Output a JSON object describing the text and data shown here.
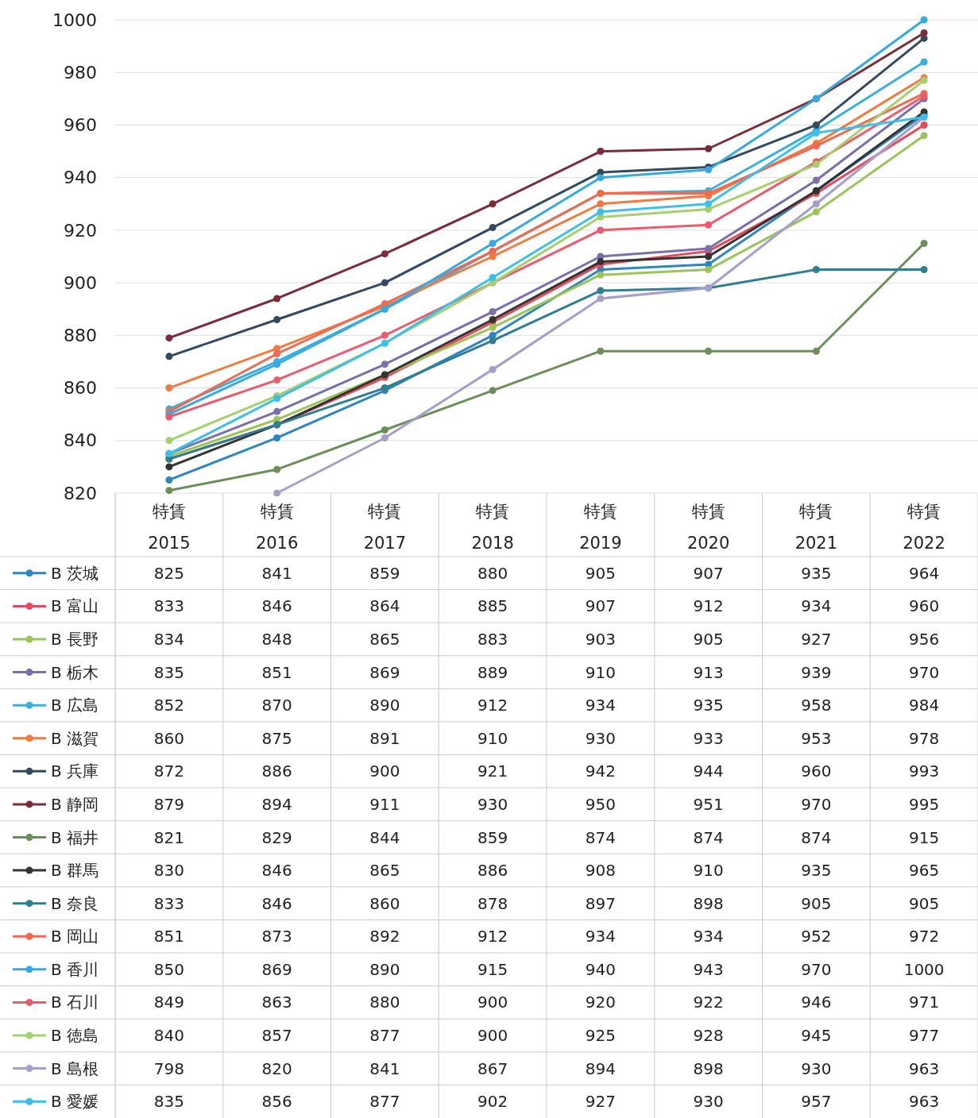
{
  "chart_data": {
    "type": "line",
    "categories": [
      "特賃 2015",
      "特賃 2016",
      "特賃 2017",
      "特賃 2018",
      "特賃 2019",
      "特賃 2020",
      "特賃 2021",
      "特賃 2022"
    ],
    "ylim": [
      820,
      1000
    ],
    "yticks": [
      820,
      840,
      860,
      880,
      900,
      920,
      940,
      960,
      980,
      1000
    ],
    "grid": "y",
    "marker": "circle",
    "line_style": "solid",
    "legend": "bottom",
    "data_labels": true,
    "series": [
      {
        "name": "B 茨城",
        "color": "#2e86c1",
        "values": [
          825,
          841,
          859,
          880,
          905,
          907,
          935,
          964
        ]
      },
      {
        "name": "B 富山",
        "color": "#e8485a",
        "values": [
          833,
          846,
          864,
          885,
          907,
          912,
          934,
          960
        ]
      },
      {
        "name": "B 長野",
        "color": "#9bc45a",
        "values": [
          834,
          848,
          865,
          883,
          903,
          905,
          927,
          956
        ]
      },
      {
        "name": "B 栃木",
        "color": "#7a6fa8",
        "values": [
          835,
          851,
          869,
          889,
          910,
          913,
          939,
          970
        ]
      },
      {
        "name": "B 広島",
        "color": "#3ab0e2",
        "values": [
          852,
          870,
          890,
          912,
          934,
          935,
          958,
          984
        ]
      },
      {
        "name": "B 滋賀",
        "color": "#f07b3f",
        "values": [
          860,
          875,
          891,
          910,
          930,
          933,
          953,
          978
        ]
      },
      {
        "name": "B 兵庫",
        "color": "#34495e",
        "values": [
          872,
          886,
          900,
          921,
          942,
          944,
          960,
          993
        ]
      },
      {
        "name": "B 静岡",
        "color": "#7b2c3a",
        "values": [
          879,
          894,
          911,
          930,
          950,
          951,
          970,
          995
        ]
      },
      {
        "name": "B 福井",
        "color": "#6b8e5a",
        "values": [
          821,
          829,
          844,
          859,
          874,
          874,
          874,
          915
        ]
      },
      {
        "name": "B 群馬",
        "color": "#333333",
        "values": [
          830,
          846,
          865,
          886,
          908,
          910,
          935,
          965
        ]
      },
      {
        "name": "B 奈良",
        "color": "#2f7f8f",
        "values": [
          833,
          846,
          860,
          878,
          897,
          898,
          905,
          905
        ]
      },
      {
        "name": "B 岡山",
        "color": "#ef6a50",
        "values": [
          851,
          873,
          892,
          912,
          934,
          934,
          952,
          972
        ]
      },
      {
        "name": "B 香川",
        "color": "#35a9e0",
        "values": [
          850,
          869,
          890,
          915,
          940,
          943,
          970,
          1000
        ]
      },
      {
        "name": "B 石川",
        "color": "#ec5a6e",
        "values": [
          849,
          863,
          880,
          900,
          920,
          922,
          946,
          971
        ]
      },
      {
        "name": "B 徳島",
        "color": "#a6cf6f",
        "values": [
          840,
          857,
          877,
          900,
          925,
          928,
          945,
          977
        ]
      },
      {
        "name": "B 島根",
        "color": "#a59fc9",
        "values": [
          null,
          820,
          841,
          867,
          894,
          898,
          930,
          963
        ],
        "value_labels": [
          "798",
          "820",
          "841",
          "867",
          "894",
          "898",
          "930",
          "963"
        ]
      },
      {
        "name": "B 愛媛",
        "color": "#3cc0ea",
        "values": [
          835,
          856,
          877,
          902,
          927,
          930,
          957,
          963
        ]
      }
    ]
  }
}
